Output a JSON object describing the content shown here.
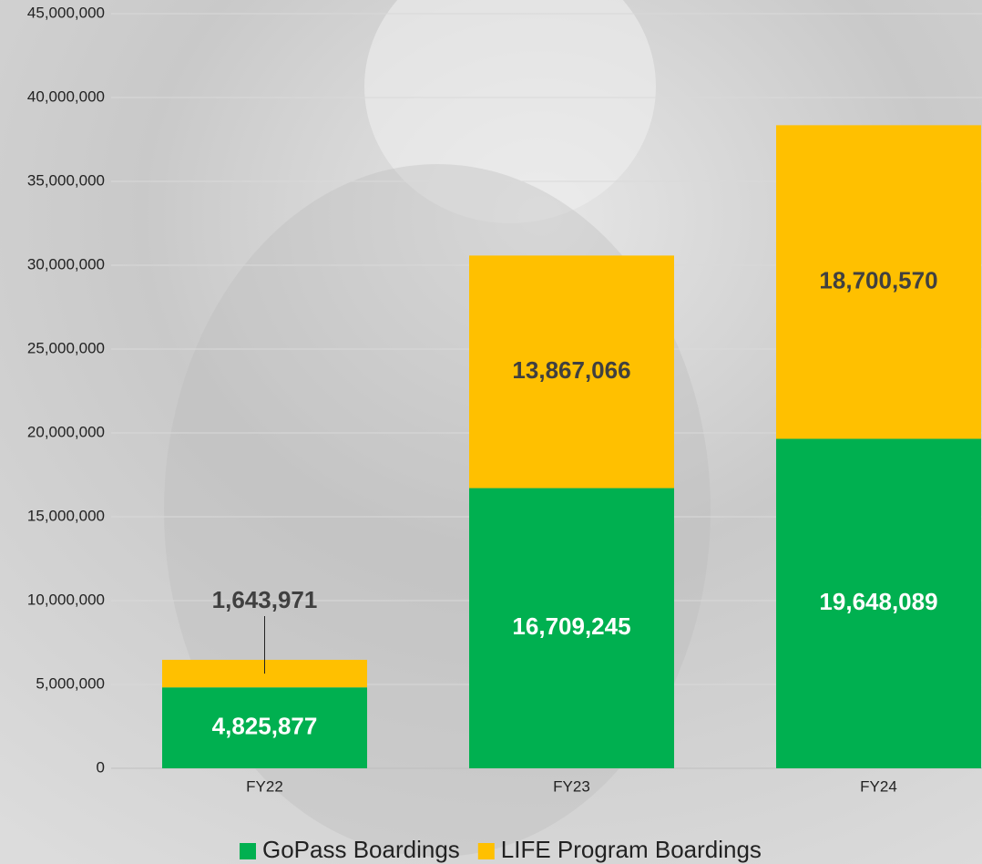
{
  "chart_data": {
    "type": "stacked_bar",
    "categories": [
      "FY22",
      "FY23",
      "FY24"
    ],
    "series": [
      {
        "name": "GoPass Boardings",
        "color": "#00b050",
        "values": [
          4825877,
          16709245,
          19648089
        ],
        "value_labels": [
          "4,825,877",
          "16,709,245",
          "19,648,089"
        ]
      },
      {
        "name": "LIFE Program Boardings",
        "color": "#ffc000",
        "values": [
          1643971,
          13867066,
          18700570
        ],
        "value_labels": [
          "1,643,971",
          "13,867,066",
          "18,700,570"
        ]
      }
    ],
    "ylim": [
      0,
      45000000
    ],
    "yticks": [
      {
        "value": 0,
        "label": "0"
      },
      {
        "value": 5000000,
        "label": "5,000,000"
      },
      {
        "value": 10000000,
        "label": "10,000,000"
      },
      {
        "value": 15000000,
        "label": "15,000,000"
      },
      {
        "value": 20000000,
        "label": "20,000,000"
      },
      {
        "value": 25000000,
        "label": "25,000,000"
      },
      {
        "value": 30000000,
        "label": "30,000,000"
      },
      {
        "value": 35000000,
        "label": "35,000,000"
      },
      {
        "value": 40000000,
        "label": "40,000,000"
      },
      {
        "value": 45000000,
        "label": "45,000,000"
      }
    ],
    "grid": true,
    "legend": "bottom"
  }
}
